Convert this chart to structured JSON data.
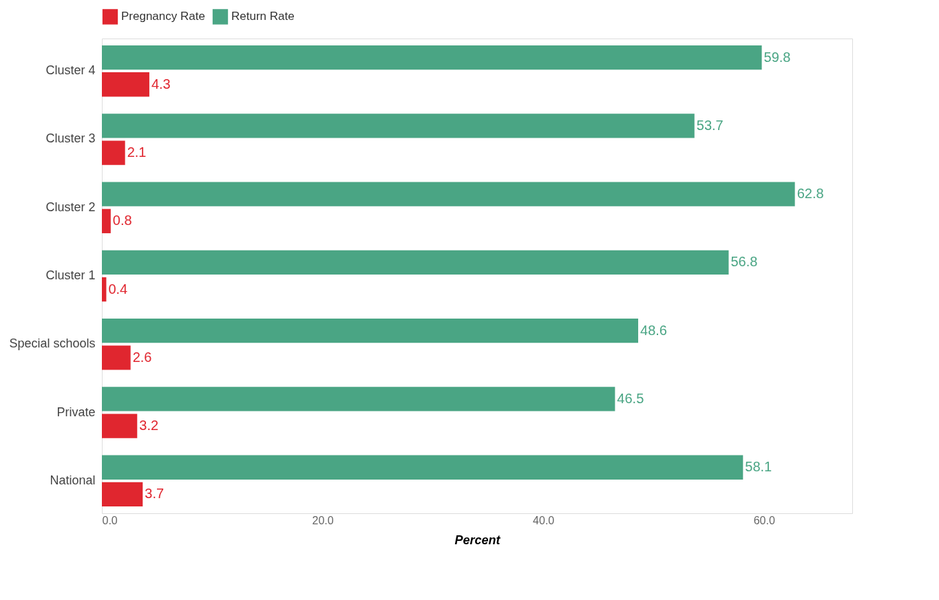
{
  "chart_data": {
    "type": "bar",
    "orientation": "horizontal",
    "xlabel": "Percent",
    "categories": [
      "Cluster 4",
      "Cluster 3",
      "Cluster 2",
      "Cluster 1",
      "Special schools",
      "Private",
      "National"
    ],
    "series": [
      {
        "name": "Pregnancy Rate",
        "color": "#e0262f",
        "values": [
          4.3,
          2.1,
          0.8,
          0.4,
          2.6,
          3.2,
          3.7
        ]
      },
      {
        "name": "Return Rate",
        "color": "#4aa584",
        "values": [
          59.8,
          53.7,
          62.8,
          56.8,
          48.6,
          46.5,
          58.1
        ]
      }
    ],
    "xlim": [
      0,
      68
    ],
    "xticks": [
      {
        "value": 0,
        "label": "0.0"
      },
      {
        "value": 20,
        "label": "20.0"
      },
      {
        "value": 40,
        "label": "40.0"
      },
      {
        "value": 60,
        "label": "60.0"
      }
    ],
    "data_labels": true,
    "grid": false,
    "legend": "top left"
  }
}
